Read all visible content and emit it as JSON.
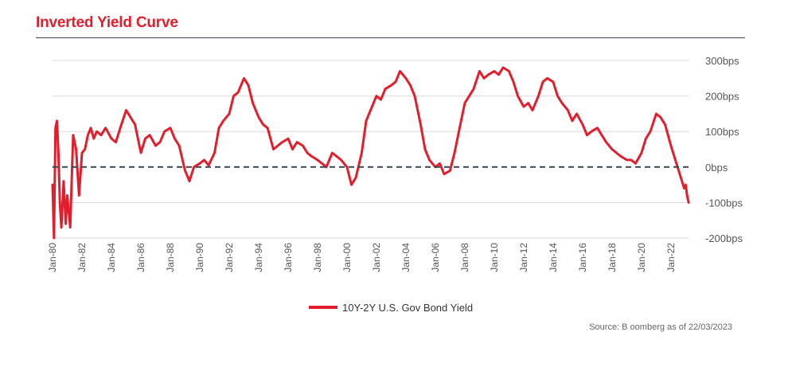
{
  "title": "Inverted Yield Curve",
  "source": "Source: B oomberg as of 22/03/2023",
  "colors": {
    "line": "#e31e2c",
    "title": "#e31e2c",
    "grid": "#d9d9d9",
    "zero": "#3c4250",
    "text": "#555555"
  },
  "chart_data": {
    "type": "line",
    "title": "Inverted Yield Curve",
    "xlabel": "",
    "ylabel": "",
    "ylim": [
      -200,
      300
    ],
    "y_ticks": [
      300,
      200,
      100,
      0,
      -100,
      -200
    ],
    "y_tick_labels": [
      "300bps",
      "200bps",
      "100bps",
      "0bps",
      "-100bps",
      "-200bps"
    ],
    "y_axis_position": "right",
    "x_range": [
      1980.0,
      2023.25
    ],
    "x_ticks": [
      1980,
      1982,
      1984,
      1986,
      1988,
      1990,
      1992,
      1994,
      1996,
      1998,
      2000,
      2002,
      2004,
      2006,
      2008,
      2010,
      2012,
      2014,
      2016,
      2018,
      2020,
      2022
    ],
    "x_tick_labels": [
      "Jan-80",
      "Jan-82",
      "Jan-84",
      "Jan-86",
      "Jan-88",
      "Jan-90",
      "Jan-92",
      "Jan-94",
      "Jan-96",
      "Jan-98",
      "Jan-00",
      "Jan-02",
      "Jan-04",
      "Jan-06",
      "Jan-08",
      "Jan-10",
      "Jan-12",
      "Jan-14",
      "Jan-16",
      "Jan-18",
      "Jan-20",
      "Jan-22"
    ],
    "reference_line": {
      "y": 0,
      "style": "dashed"
    },
    "grid": true,
    "legend": {
      "position": "bottom-center",
      "entries": [
        "10Y-2Y U.S. Gov Bond Yield"
      ]
    },
    "series": [
      {
        "name": "10Y-2Y U.S. Gov Bond Yield",
        "x": [
          1980.0,
          1980.1,
          1980.2,
          1980.3,
          1980.4,
          1980.5,
          1980.6,
          1980.75,
          1980.9,
          1981.0,
          1981.2,
          1981.4,
          1981.6,
          1981.8,
          1982.0,
          1982.2,
          1982.4,
          1982.6,
          1982.8,
          1983.0,
          1983.3,
          1983.6,
          1984.0,
          1984.3,
          1984.6,
          1985.0,
          1985.3,
          1985.6,
          1986.0,
          1986.3,
          1986.6,
          1987.0,
          1987.3,
          1987.6,
          1988.0,
          1988.3,
          1988.6,
          1989.0,
          1989.3,
          1989.6,
          1990.0,
          1990.3,
          1990.6,
          1991.0,
          1991.3,
          1991.6,
          1992.0,
          1992.3,
          1992.6,
          1993.0,
          1993.3,
          1993.6,
          1994.0,
          1994.3,
          1994.6,
          1995.0,
          1995.3,
          1995.6,
          1996.0,
          1996.3,
          1996.6,
          1997.0,
          1997.3,
          1997.6,
          1998.0,
          1998.3,
          1998.6,
          1999.0,
          1999.3,
          1999.6,
          2000.0,
          2000.3,
          2000.6,
          2001.0,
          2001.3,
          2001.6,
          2002.0,
          2002.3,
          2002.6,
          2003.0,
          2003.3,
          2003.6,
          2004.0,
          2004.3,
          2004.6,
          2005.0,
          2005.3,
          2005.6,
          2006.0,
          2006.3,
          2006.6,
          2007.0,
          2007.3,
          2007.6,
          2008.0,
          2008.3,
          2008.6,
          2009.0,
          2009.3,
          2009.6,
          2010.0,
          2010.3,
          2010.6,
          2011.0,
          2011.3,
          2011.6,
          2012.0,
          2012.3,
          2012.6,
          2013.0,
          2013.3,
          2013.6,
          2014.0,
          2014.3,
          2014.6,
          2015.0,
          2015.3,
          2015.6,
          2016.0,
          2016.3,
          2016.6,
          2017.0,
          2017.3,
          2017.6,
          2018.0,
          2018.3,
          2018.6,
          2019.0,
          2019.3,
          2019.6,
          2020.0,
          2020.3,
          2020.6,
          2021.0,
          2021.3,
          2021.6,
          2022.0,
          2022.3,
          2022.6,
          2022.9,
          2023.0,
          2023.1,
          2023.2
        ],
        "values": [
          -50,
          -200,
          110,
          130,
          40,
          -100,
          -170,
          -40,
          -160,
          -80,
          -170,
          90,
          50,
          -80,
          40,
          50,
          90,
          110,
          80,
          100,
          90,
          110,
          80,
          70,
          110,
          160,
          140,
          120,
          40,
          80,
          90,
          60,
          70,
          100,
          110,
          80,
          60,
          -10,
          -40,
          0,
          10,
          20,
          5,
          40,
          110,
          130,
          150,
          200,
          210,
          250,
          230,
          180,
          140,
          120,
          110,
          50,
          60,
          70,
          80,
          50,
          70,
          60,
          40,
          30,
          20,
          10,
          0,
          40,
          30,
          20,
          0,
          -50,
          -30,
          40,
          130,
          160,
          200,
          190,
          220,
          230,
          240,
          270,
          250,
          230,
          200,
          120,
          50,
          20,
          0,
          10,
          -20,
          -10,
          40,
          100,
          180,
          200,
          220,
          270,
          250,
          260,
          270,
          260,
          280,
          270,
          240,
          200,
          170,
          180,
          160,
          200,
          240,
          250,
          240,
          200,
          180,
          160,
          130,
          150,
          120,
          90,
          100,
          110,
          90,
          70,
          50,
          40,
          30,
          20,
          20,
          10,
          40,
          80,
          100,
          150,
          140,
          120,
          60,
          20,
          -20,
          -60,
          -50,
          -80,
          -100
        ]
      }
    ]
  }
}
